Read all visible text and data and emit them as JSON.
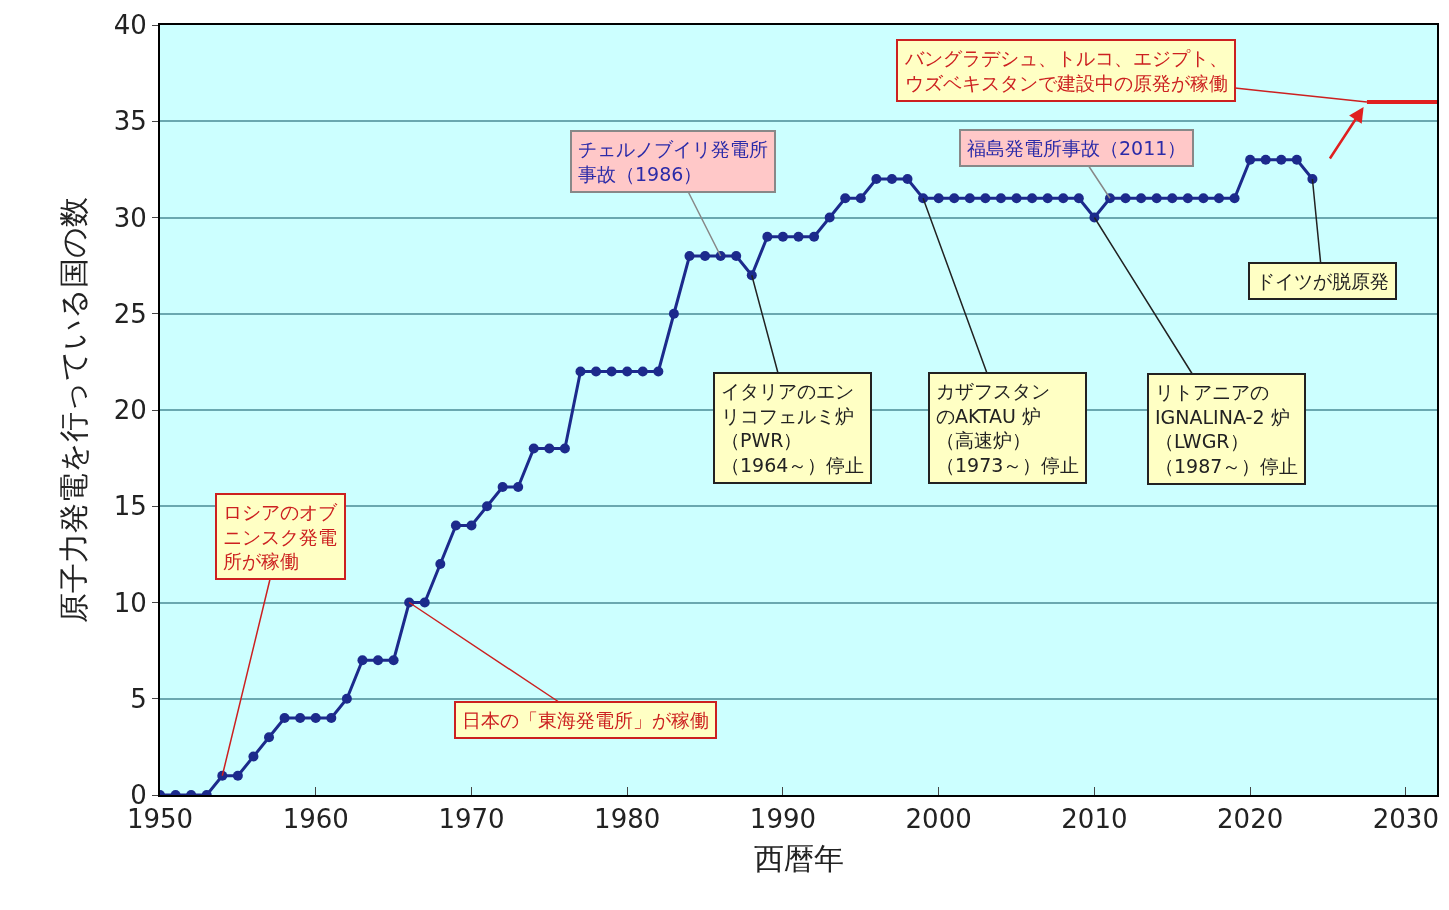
{
  "chart_data": {
    "type": "line",
    "xlabel": "西暦年",
    "ylabel": "原子力発電を行っている国の数",
    "xlim": [
      1950,
      2032
    ],
    "ylim": [
      0,
      40
    ],
    "xticks": [
      1950,
      1960,
      1970,
      1980,
      1990,
      2000,
      2010,
      2020,
      2030
    ],
    "yticks": [
      0,
      5,
      10,
      15,
      20,
      25,
      30,
      35,
      40
    ],
    "grid": "y",
    "marker": "circle",
    "line_style": "solid",
    "series": [
      {
        "color": "#1c2a8c",
        "x": [
          1950,
          1951,
          1952,
          1953,
          1954,
          1955,
          1956,
          1957,
          1958,
          1959,
          1960,
          1961,
          1962,
          1963,
          1964,
          1965,
          1966,
          1967,
          1968,
          1969,
          1970,
          1971,
          1972,
          1973,
          1974,
          1975,
          1976,
          1977,
          1978,
          1979,
          1980,
          1981,
          1982,
          1983,
          1984,
          1985,
          1986,
          1987,
          1988,
          1989,
          1990,
          1991,
          1992,
          1993,
          1994,
          1995,
          1996,
          1997,
          1998,
          1999,
          2000,
          2001,
          2002,
          2003,
          2004,
          2005,
          2006,
          2007,
          2008,
          2009,
          2010,
          2011,
          2012,
          2013,
          2014,
          2015,
          2016,
          2017,
          2018,
          2019,
          2020,
          2021,
          2022,
          2023,
          2024
        ],
        "values": [
          0,
          0,
          0,
          0,
          1,
          1,
          2,
          3,
          4,
          4,
          4,
          4,
          5,
          7,
          7,
          7,
          10,
          10,
          12,
          14,
          14,
          15,
          16,
          16,
          18,
          18,
          18,
          22,
          22,
          22,
          22,
          22,
          22,
          25,
          28,
          28,
          28,
          28,
          27,
          29,
          29,
          29,
          29,
          30,
          31,
          31,
          32,
          32,
          32,
          31,
          31,
          31,
          31,
          31,
          31,
          31,
          31,
          31,
          31,
          31,
          30,
          31,
          31,
          31,
          31,
          31,
          31,
          31,
          31,
          31,
          33,
          33,
          33,
          33,
          32
        ]
      },
      {
        "color": "#e02020",
        "marker": "none",
        "x": [
          2027.5,
          2032
        ],
        "values": [
          36,
          36
        ]
      }
    ],
    "annotations": [
      {
        "text": "ロシアのオブニンスク発電所が稼働",
        "x": 1954,
        "y": 1
      },
      {
        "text": "日本の「東海発電所」が稼働",
        "x": 1966,
        "y": 10
      },
      {
        "text": "チェルノブイリ発電所事故（1986）",
        "x": 1986,
        "y": 28
      },
      {
        "text": "イタリアのエンリコフェルミ炉（PWR）（1964～）停止",
        "x": 1988,
        "y": 27
      },
      {
        "text": "カザフスタンのAKTAU 炉（高速炉）（1973～）停止",
        "x": 1999,
        "y": 31
      },
      {
        "text": "福島発電所事故（2011）",
        "x": 2011,
        "y": 31
      },
      {
        "text": "リトアニアのIGNALINA-2 炉（LWGR）（1987～）停止",
        "x": 2010,
        "y": 30
      },
      {
        "text": "ドイツが脱原発",
        "x": 2024,
        "y": 32
      },
      {
        "text": "バングラデシュ、トルコ、エジプト、ウズベキスタンで建設中の原発が稼働",
        "x": 2027.5,
        "y": 36
      }
    ]
  }
}
